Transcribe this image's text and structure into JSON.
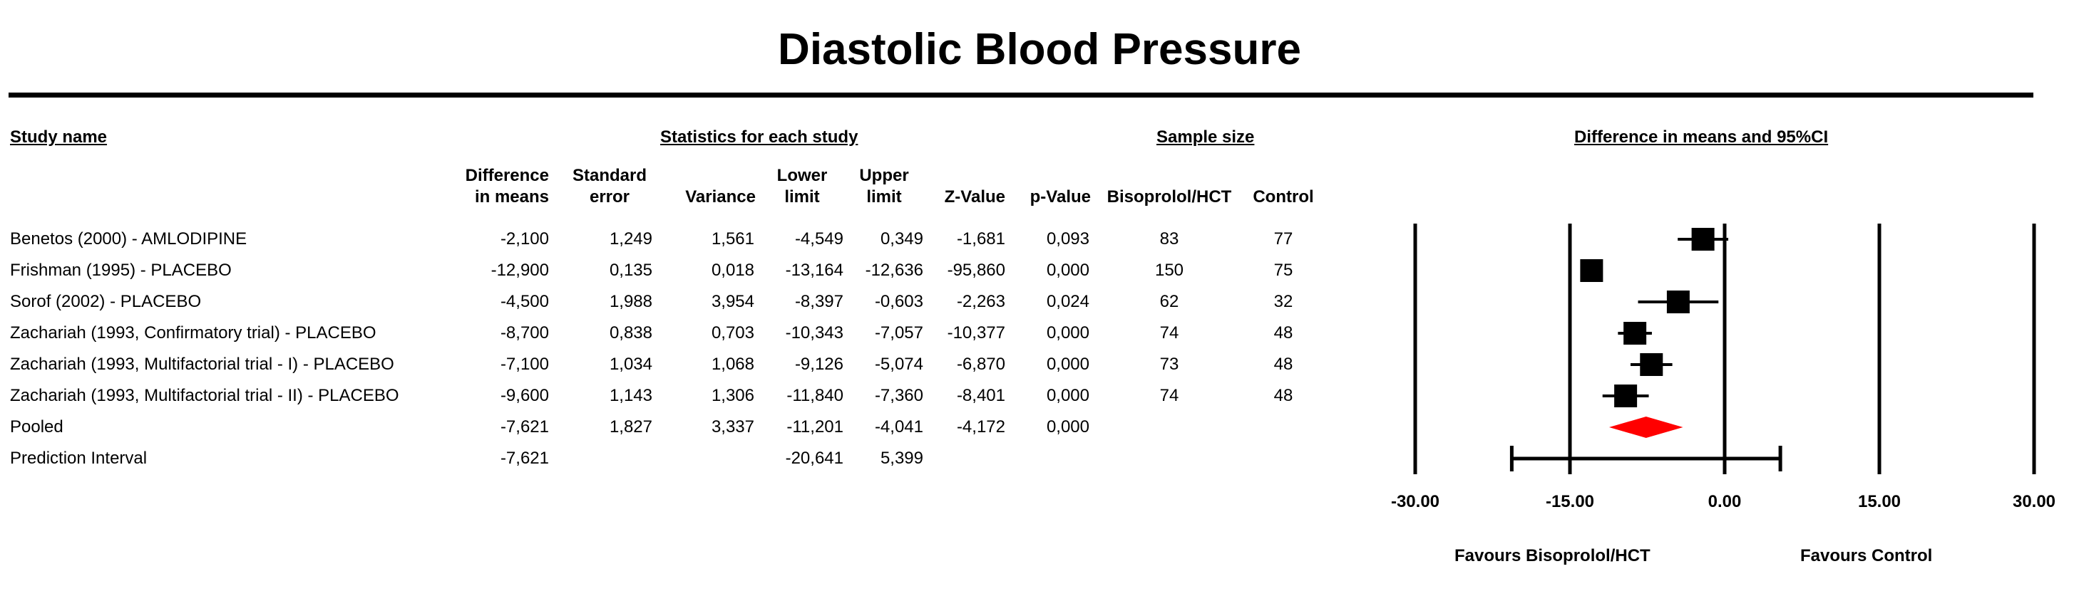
{
  "title": "Diastolic Blood Pressure",
  "headers": {
    "study_name": "Study name",
    "statistics": "Statistics for each study",
    "sample_size": "Sample size",
    "plot": "Difference in means and 95%CI"
  },
  "columns": {
    "diff": [
      "Difference",
      "in means"
    ],
    "se": [
      "Standard",
      "error"
    ],
    "variance": "Variance",
    "lower": [
      "Lower",
      "limit"
    ],
    "upper": [
      "Upper",
      "limit"
    ],
    "z": "Z-Value",
    "p": "p-Value",
    "treatment": "Bisoprolol/HCT",
    "control": "Control"
  },
  "rows": [
    {
      "study": "Benetos (2000) - AMLODIPINE",
      "diff": "-2,100",
      "se": "1,249",
      "variance": "1,561",
      "lower": "-4,549",
      "upper": "0,349",
      "z": "-1,681",
      "p": "0,093",
      "treatment": "83",
      "control": "77"
    },
    {
      "study": "Frishman (1995) - PLACEBO",
      "diff": "-12,900",
      "se": "0,135",
      "variance": "0,018",
      "lower": "-13,164",
      "upper": "-12,636",
      "z": "-95,860",
      "p": "0,000",
      "treatment": "150",
      "control": "75"
    },
    {
      "study": "Sorof (2002) - PLACEBO",
      "diff": "-4,500",
      "se": "1,988",
      "variance": "3,954",
      "lower": "-8,397",
      "upper": "-0,603",
      "z": "-2,263",
      "p": "0,024",
      "treatment": "62",
      "control": "32"
    },
    {
      "study": "Zachariah (1993, Confirmatory trial) - PLACEBO",
      "diff": "-8,700",
      "se": "0,838",
      "variance": "0,703",
      "lower": "-10,343",
      "upper": "-7,057",
      "z": "-10,377",
      "p": "0,000",
      "treatment": "74",
      "control": "48"
    },
    {
      "study": "Zachariah (1993, Multifactorial trial - I) - PLACEBO",
      "diff": "-7,100",
      "se": "1,034",
      "variance": "1,068",
      "lower": "-9,126",
      "upper": "-5,074",
      "z": "-6,870",
      "p": "0,000",
      "treatment": "73",
      "control": "48"
    },
    {
      "study": "Zachariah (1993, Multifactorial trial - II) - PLACEBO",
      "diff": "-9,600",
      "se": "1,143",
      "variance": "1,306",
      "lower": "-11,840",
      "upper": "-7,360",
      "z": "-8,401",
      "p": "0,000",
      "treatment": "74",
      "control": "48"
    },
    {
      "study": "Pooled",
      "diff": "-7,621",
      "se": "1,827",
      "variance": "3,337",
      "lower": "-11,201",
      "upper": "-4,041",
      "z": "-4,172",
      "p": "0,000",
      "treatment": "",
      "control": ""
    },
    {
      "study": "Prediction Interval",
      "diff": "-7,621",
      "se": "",
      "variance": "",
      "lower": "-20,641",
      "upper": "5,399",
      "z": "",
      "p": "",
      "treatment": "",
      "control": ""
    }
  ],
  "favours": {
    "left": "Favours Bisoprolol/HCT",
    "right": "Favours Control"
  },
  "colors": {
    "pooled_diamond": "#ff0000",
    "marker": "#000000"
  },
  "chart_data": {
    "type": "forest",
    "title": "Difference in means and 95%CI",
    "xlim": [
      -30,
      30
    ],
    "ticks": [
      -30,
      -15,
      0,
      15,
      30
    ],
    "tick_labels": [
      "-30.00",
      "-15.00",
      "0.00",
      "15.00",
      "30.00"
    ],
    "studies": [
      {
        "name": "Benetos (2000) - AMLODIPINE",
        "estimate": -2.1,
        "lower": -4.549,
        "upper": 0.349
      },
      {
        "name": "Frishman (1995) - PLACEBO",
        "estimate": -12.9,
        "lower": -13.164,
        "upper": -12.636
      },
      {
        "name": "Sorof (2002) - PLACEBO",
        "estimate": -4.5,
        "lower": -8.397,
        "upper": -0.603
      },
      {
        "name": "Zachariah (1993, Confirmatory trial) - PLACEBO",
        "estimate": -8.7,
        "lower": -10.343,
        "upper": -7.057
      },
      {
        "name": "Zachariah (1993, Multifactorial trial - I) - PLACEBO",
        "estimate": -7.1,
        "lower": -9.126,
        "upper": -5.074
      },
      {
        "name": "Zachariah (1993, Multifactorial trial - II) - PLACEBO",
        "estimate": -9.6,
        "lower": -11.84,
        "upper": -7.36
      }
    ],
    "pooled": {
      "estimate": -7.621,
      "lower": -11.201,
      "upper": -4.041
    },
    "prediction_interval": {
      "estimate": -7.621,
      "lower": -20.641,
      "upper": 5.399
    }
  }
}
